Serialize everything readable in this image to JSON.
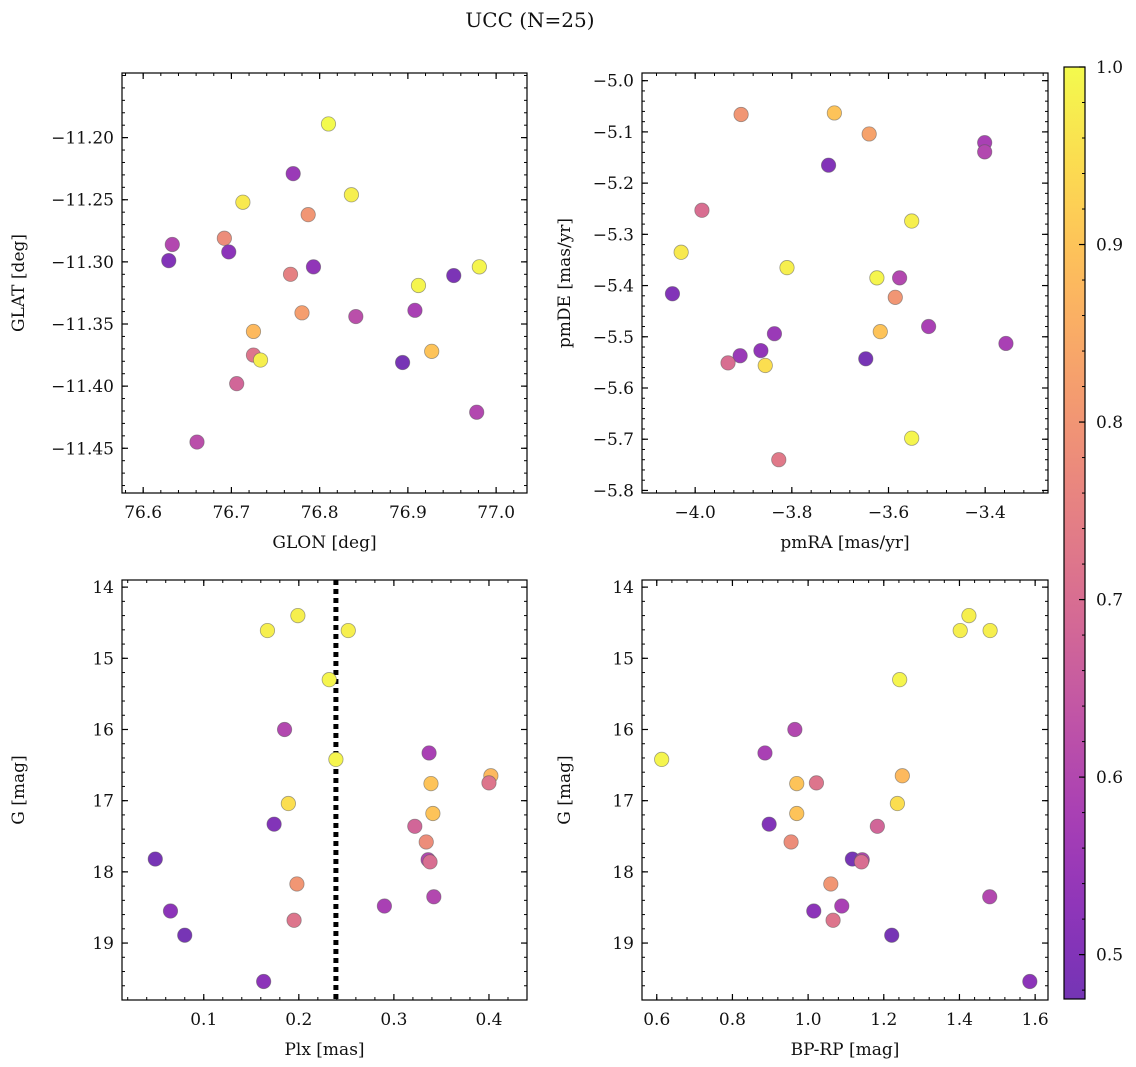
{
  "title": "UCC (N=25)",
  "colorbar": {
    "min": 0.475,
    "max": 1.0,
    "ticks": [
      0.5,
      0.6,
      0.7,
      0.8,
      0.9,
      1.0
    ],
    "tick_labels": [
      "0.5",
      "0.6",
      "0.7",
      "0.8",
      "0.9",
      "1.0"
    ],
    "colormap": "plasma",
    "alpha": 0.8
  },
  "chart_data": [
    {
      "type": "scatter",
      "name": "panel-glon-glat",
      "xlabel": "GLON [deg]",
      "ylabel": "GLAT [deg]",
      "xlim": [
        76.576,
        77.035
      ],
      "ylim": [
        -11.486,
        -11.148
      ],
      "xticks": [
        76.6,
        76.7,
        76.8,
        76.9,
        77.0
      ],
      "xtick_labels": [
        "76.6",
        "76.7",
        "76.8",
        "76.9",
        "77.0"
      ],
      "yticks": [
        -11.2,
        -11.25,
        -11.3,
        -11.35,
        -11.4,
        -11.45
      ],
      "ytick_labels": [
        "−11.20",
        "−11.25",
        "−11.30",
        "−11.35",
        "−11.40",
        "−11.45"
      ],
      "points": [
        {
          "x": 76.81,
          "y": -11.189,
          "c": 1.0
        },
        {
          "x": 76.77,
          "y": -11.229,
          "c": 0.55
        },
        {
          "x": 76.836,
          "y": -11.246,
          "c": 0.98
        },
        {
          "x": 76.713,
          "y": -11.252,
          "c": 0.97
        },
        {
          "x": 76.787,
          "y": -11.262,
          "c": 0.8
        },
        {
          "x": 76.692,
          "y": -11.281,
          "c": 0.78
        },
        {
          "x": 76.633,
          "y": -11.286,
          "c": 0.6
        },
        {
          "x": 76.697,
          "y": -11.292,
          "c": 0.52
        },
        {
          "x": 76.629,
          "y": -11.299,
          "c": 0.5
        },
        {
          "x": 76.793,
          "y": -11.304,
          "c": 0.53
        },
        {
          "x": 76.981,
          "y": -11.304,
          "c": 0.99
        },
        {
          "x": 76.767,
          "y": -11.31,
          "c": 0.75
        },
        {
          "x": 76.952,
          "y": -11.311,
          "c": 0.49
        },
        {
          "x": 76.912,
          "y": -11.319,
          "c": 0.99
        },
        {
          "x": 76.908,
          "y": -11.339,
          "c": 0.58
        },
        {
          "x": 76.78,
          "y": -11.341,
          "c": 0.82
        },
        {
          "x": 76.841,
          "y": -11.344,
          "c": 0.62
        },
        {
          "x": 76.725,
          "y": -11.356,
          "c": 0.88
        },
        {
          "x": 76.927,
          "y": -11.372,
          "c": 0.9
        },
        {
          "x": 76.725,
          "y": -11.375,
          "c": 0.72
        },
        {
          "x": 76.733,
          "y": -11.379,
          "c": 0.98
        },
        {
          "x": 76.894,
          "y": -11.381,
          "c": 0.48
        },
        {
          "x": 76.706,
          "y": -11.398,
          "c": 0.68
        },
        {
          "x": 76.978,
          "y": -11.421,
          "c": 0.6
        },
        {
          "x": 76.661,
          "y": -11.445,
          "c": 0.62
        }
      ]
    },
    {
      "type": "scatter",
      "name": "panel-pmra-pmde",
      "xlabel": "pmRA [mas/yr]",
      "ylabel": "pmDE [mas/yr]",
      "xlim": [
        -4.11,
        -3.27
      ],
      "ylim": [
        -5.805,
        -4.985
      ],
      "xticks": [
        -4.0,
        -3.8,
        -3.6,
        -3.4
      ],
      "xtick_labels": [
        "−4.0",
        "−3.8",
        "−3.6",
        "−3.4"
      ],
      "yticks": [
        -5.0,
        -5.1,
        -5.2,
        -5.3,
        -5.4,
        -5.5,
        -5.6,
        -5.7,
        -5.8
      ],
      "ytick_labels": [
        "−5.0",
        "−5.1",
        "−5.2",
        "−5.3",
        "−5.4",
        "−5.5",
        "−5.6",
        "−5.7",
        "−5.8"
      ],
      "points": [
        {
          "x": -3.905,
          "y": -5.066,
          "c": 0.8
        },
        {
          "x": -3.712,
          "y": -5.063,
          "c": 0.9
        },
        {
          "x": -3.64,
          "y": -5.104,
          "c": 0.83
        },
        {
          "x": -3.401,
          "y": -5.121,
          "c": 0.58
        },
        {
          "x": -3.401,
          "y": -5.139,
          "c": 0.6
        },
        {
          "x": -3.724,
          "y": -5.165,
          "c": 0.5
        },
        {
          "x": -3.986,
          "y": -5.253,
          "c": 0.7
        },
        {
          "x": -3.552,
          "y": -5.274,
          "c": 0.98
        },
        {
          "x": -4.029,
          "y": -5.335,
          "c": 0.97
        },
        {
          "x": -3.81,
          "y": -5.365,
          "c": 0.98
        },
        {
          "x": -3.624,
          "y": -5.385,
          "c": 0.99
        },
        {
          "x": -3.577,
          "y": -5.385,
          "c": 0.6
        },
        {
          "x": -4.047,
          "y": -5.416,
          "c": 0.5
        },
        {
          "x": -3.586,
          "y": -5.423,
          "c": 0.8
        },
        {
          "x": -3.517,
          "y": -5.48,
          "c": 0.58
        },
        {
          "x": -3.617,
          "y": -5.49,
          "c": 0.9
        },
        {
          "x": -3.836,
          "y": -5.494,
          "c": 0.55
        },
        {
          "x": -3.357,
          "y": -5.513,
          "c": 0.58
        },
        {
          "x": -3.864,
          "y": -5.527,
          "c": 0.53
        },
        {
          "x": -3.907,
          "y": -5.537,
          "c": 0.55
        },
        {
          "x": -3.647,
          "y": -5.543,
          "c": 0.48
        },
        {
          "x": -3.932,
          "y": -5.551,
          "c": 0.7
        },
        {
          "x": -3.855,
          "y": -5.556,
          "c": 0.95
        },
        {
          "x": -3.552,
          "y": -5.698,
          "c": 0.99
        },
        {
          "x": -3.827,
          "y": -5.74,
          "c": 0.73
        }
      ]
    },
    {
      "type": "scatter",
      "name": "panel-plx-g",
      "xlabel": "Plx [mas]",
      "ylabel": "G [mag]",
      "xlim": [
        0.014,
        0.44
      ],
      "ylim": [
        19.8,
        13.9
      ],
      "y_inverted": true,
      "xticks": [
        0.1,
        0.2,
        0.3,
        0.4
      ],
      "xtick_labels": [
        "0.1",
        "0.2",
        "0.3",
        "0.4"
      ],
      "yticks": [
        14,
        15,
        16,
        17,
        18,
        19
      ],
      "ytick_labels": [
        "14",
        "15",
        "16",
        "17",
        "18",
        "19"
      ],
      "vline": {
        "x": 0.239,
        "style": "dotted"
      },
      "points": [
        {
          "x": 0.199,
          "y": 14.4,
          "c": 0.98
        },
        {
          "x": 0.167,
          "y": 14.61,
          "c": 0.98
        },
        {
          "x": 0.252,
          "y": 14.61,
          "c": 0.98
        },
        {
          "x": 0.232,
          "y": 15.3,
          "c": 0.99
        },
        {
          "x": 0.185,
          "y": 16.0,
          "c": 0.6
        },
        {
          "x": 0.337,
          "y": 16.33,
          "c": 0.58
        },
        {
          "x": 0.239,
          "y": 16.42,
          "c": 0.99
        },
        {
          "x": 0.402,
          "y": 16.65,
          "c": 0.88
        },
        {
          "x": 0.4,
          "y": 16.75,
          "c": 0.72
        },
        {
          "x": 0.339,
          "y": 16.76,
          "c": 0.9
        },
        {
          "x": 0.189,
          "y": 17.04,
          "c": 0.95
        },
        {
          "x": 0.341,
          "y": 17.18,
          "c": 0.9
        },
        {
          "x": 0.174,
          "y": 17.33,
          "c": 0.5
        },
        {
          "x": 0.322,
          "y": 17.36,
          "c": 0.68
        },
        {
          "x": 0.334,
          "y": 17.58,
          "c": 0.78
        },
        {
          "x": 0.049,
          "y": 17.82,
          "c": 0.48
        },
        {
          "x": 0.336,
          "y": 17.83,
          "c": 0.6
        },
        {
          "x": 0.338,
          "y": 17.86,
          "c": 0.7
        },
        {
          "x": 0.198,
          "y": 18.17,
          "c": 0.8
        },
        {
          "x": 0.342,
          "y": 18.35,
          "c": 0.6
        },
        {
          "x": 0.29,
          "y": 18.48,
          "c": 0.58
        },
        {
          "x": 0.065,
          "y": 18.55,
          "c": 0.52
        },
        {
          "x": 0.195,
          "y": 18.68,
          "c": 0.72
        },
        {
          "x": 0.08,
          "y": 18.89,
          "c": 0.48
        },
        {
          "x": 0.163,
          "y": 19.54,
          "c": 0.52
        }
      ]
    },
    {
      "type": "scatter",
      "name": "panel-bprp-g",
      "xlabel": "BP-RP [mag]",
      "ylabel": "G [mag]",
      "xlim": [
        0.561,
        1.634
      ],
      "ylim": [
        19.8,
        13.9
      ],
      "y_inverted": true,
      "xticks": [
        0.6,
        0.8,
        1.0,
        1.2,
        1.4,
        1.6
      ],
      "xtick_labels": [
        "0.6",
        "0.8",
        "1.0",
        "1.2",
        "1.4",
        "1.6"
      ],
      "yticks": [
        14,
        15,
        16,
        17,
        18,
        19
      ],
      "ytick_labels": [
        "14",
        "15",
        "16",
        "17",
        "18",
        "19"
      ],
      "points": [
        {
          "x": 1.425,
          "y": 14.4,
          "c": 0.98
        },
        {
          "x": 1.402,
          "y": 14.61,
          "c": 0.98
        },
        {
          "x": 1.481,
          "y": 14.61,
          "c": 0.98
        },
        {
          "x": 1.242,
          "y": 15.3,
          "c": 0.99
        },
        {
          "x": 0.965,
          "y": 16.0,
          "c": 0.6
        },
        {
          "x": 0.886,
          "y": 16.33,
          "c": 0.58
        },
        {
          "x": 0.613,
          "y": 16.42,
          "c": 0.99
        },
        {
          "x": 1.249,
          "y": 16.65,
          "c": 0.88
        },
        {
          "x": 1.022,
          "y": 16.75,
          "c": 0.72
        },
        {
          "x": 0.97,
          "y": 16.76,
          "c": 0.9
        },
        {
          "x": 1.236,
          "y": 17.04,
          "c": 0.95
        },
        {
          "x": 0.97,
          "y": 17.18,
          "c": 0.9
        },
        {
          "x": 0.897,
          "y": 17.33,
          "c": 0.5
        },
        {
          "x": 1.183,
          "y": 17.36,
          "c": 0.68
        },
        {
          "x": 0.955,
          "y": 17.58,
          "c": 0.78
        },
        {
          "x": 1.117,
          "y": 17.82,
          "c": 0.48
        },
        {
          "x": 1.143,
          "y": 17.83,
          "c": 0.6
        },
        {
          "x": 1.141,
          "y": 17.86,
          "c": 0.7
        },
        {
          "x": 1.06,
          "y": 18.17,
          "c": 0.8
        },
        {
          "x": 1.48,
          "y": 18.35,
          "c": 0.6
        },
        {
          "x": 1.089,
          "y": 18.48,
          "c": 0.58
        },
        {
          "x": 1.015,
          "y": 18.55,
          "c": 0.52
        },
        {
          "x": 1.066,
          "y": 18.68,
          "c": 0.72
        },
        {
          "x": 1.221,
          "y": 18.89,
          "c": 0.48
        },
        {
          "x": 1.586,
          "y": 19.54,
          "c": 0.52
        }
      ]
    }
  ]
}
